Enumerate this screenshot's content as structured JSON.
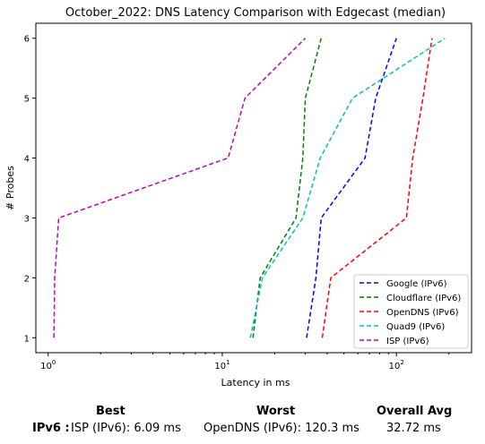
{
  "chart_data": {
    "type": "line",
    "title": "October_2022: DNS Latency Comparison with Edgecast (median)",
    "xlabel": "Latency in ms",
    "ylabel": "# Probes",
    "xscale": "log",
    "xlim": [
      0.85,
      270
    ],
    "ylim": [
      0.75,
      6.25
    ],
    "xticks": [
      {
        "value": 1,
        "label": "10^0"
      },
      {
        "value": 10,
        "label": "10^1"
      },
      {
        "value": 100,
        "label": "10^2"
      }
    ],
    "yticks": [
      1,
      2,
      3,
      4,
      5,
      6
    ],
    "grid": false,
    "legend_position": "bottom-right",
    "series": [
      {
        "name": "Google (IPv6)",
        "color": "#0000ff",
        "style": "dashed",
        "x": [
          30.5,
          34.5,
          37,
          66,
          76,
          100
        ],
        "y": [
          1,
          2,
          3,
          4,
          5,
          6
        ]
      },
      {
        "name": "Cloudflare (IPv6)",
        "color": "#008000",
        "style": "dashed",
        "x": [
          15,
          16.5,
          26.5,
          29,
          30,
          37
        ],
        "y": [
          1,
          2,
          3,
          4,
          5,
          6
        ]
      },
      {
        "name": "OpenDNS (IPv6)",
        "color": "#ff0000",
        "style": "dashed",
        "x": [
          37.5,
          42,
          114,
          124,
          142,
          160
        ],
        "y": [
          1,
          2,
          3,
          4,
          5,
          6
        ]
      },
      {
        "name": "Quad9 (IPv6)",
        "color": "#00bfbf",
        "style": "dashed",
        "x": [
          14.5,
          17,
          29,
          36.5,
          56,
          190
        ],
        "y": [
          1,
          2,
          3,
          4,
          5,
          6
        ]
      },
      {
        "name": "ISP (IPv6)",
        "color": "#bf00bf",
        "style": "dashed",
        "x": [
          1.08,
          1.09,
          1.15,
          10.8,
          13.5,
          30
        ],
        "y": [
          1,
          2,
          3,
          4,
          5,
          6
        ]
      }
    ]
  },
  "summary": {
    "headers": {
      "best": "Best",
      "worst": "Worst",
      "avg": "Overall Avg"
    },
    "row_label": "IPv6 :",
    "best": "ISP (IPv6): 6.09 ms",
    "worst": "OpenDNS (IPv6): 120.3 ms",
    "avg": "32.72 ms"
  }
}
